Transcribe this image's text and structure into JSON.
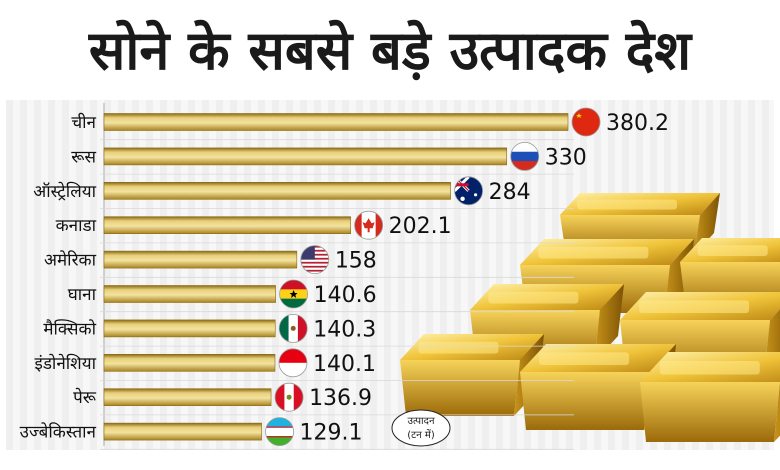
{
  "title": "सोने के सबसे बड़े उत्पादक देश",
  "chart_data": {
    "type": "bar",
    "orientation": "horizontal",
    "title": "सोने के सबसे बड़े उत्पादक देश",
    "categories": [
      "चीन",
      "रूस",
      "ऑस्ट्रेलिया",
      "कनाडा",
      "अमेरिका",
      "घाना",
      "मैक्सिको",
      "इंडोनेशिया",
      "पेरू",
      "उज्बेकिस्तान"
    ],
    "values": [
      380.2,
      330,
      284,
      202.1,
      158,
      140.6,
      140.3,
      140.1,
      136.9,
      129.1
    ],
    "value_labels": [
      "380.2",
      "330",
      "284",
      "202.1",
      "158",
      "140.6",
      "140.3",
      "140.1",
      "136.9",
      "129.1"
    ],
    "flags": [
      "china-flag-icon",
      "russia-flag-icon",
      "australia-flag-icon",
      "canada-flag-icon",
      "usa-flag-icon",
      "ghana-flag-icon",
      "mexico-flag-icon",
      "indonesia-flag-icon",
      "peru-flag-icon",
      "uzbekistan-flag-icon"
    ],
    "unit_label": [
      "उत्पादन",
      "(टन में)"
    ],
    "bar_color": "#c9a43a",
    "xlim": [
      0,
      380.2
    ]
  }
}
